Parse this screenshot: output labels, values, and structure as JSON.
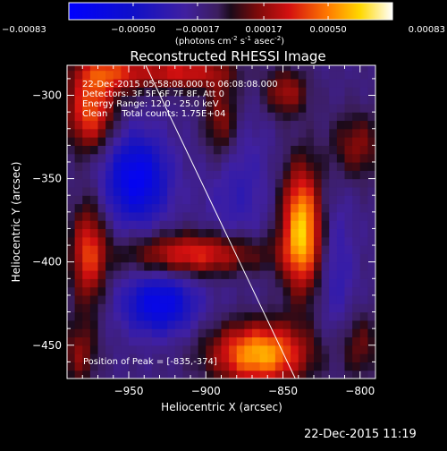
{
  "chart_data": {
    "type": "heatmap",
    "title": "Reconstructed RHESSI Image",
    "xlabel": "Heliocentric X (arcsec)",
    "ylabel": "Heliocentric Y (arcsec)",
    "xlim": [
      -990,
      -790
    ],
    "ylim": [
      -470,
      -282
    ],
    "x_ticks": [
      -950,
      -900,
      -850,
      -800
    ],
    "y_ticks": [
      -300,
      -350,
      -400,
      -450
    ],
    "colorbar": {
      "ticks": [
        "-0.00083",
        "-0.00050",
        "-0.00017",
        "0.00017",
        "0.00050",
        "0.00083"
      ],
      "range": [
        -0.00083,
        0.00083
      ],
      "unit_text": "(photons cm",
      "unit_sup1": "-2",
      "unit_mid": " s",
      "unit_sup2": "-1",
      "unit_mid2": " asec",
      "unit_sup3": "-2",
      "unit_end": ")"
    },
    "annotations": [
      "22-Dec-2015 05:58:08.000 to 06:08:08.000",
      "Detectors: 3F 5F 6F 7F 8F, Att 0",
      "Energy Range: 12.0 - 25.0 keV",
      "Clean     Total counts: 1.75E+04"
    ],
    "peak_text": "Position of Peak = [-835,-374]",
    "limb_line": {
      "x": [
        -939,
        -842
      ],
      "y": [
        -282,
        -470
      ]
    },
    "blobs": [
      {
        "x": -838,
        "y": -380,
        "sx": 9,
        "sy": 26,
        "a": 1.6
      },
      {
        "x": -865,
        "y": -455,
        "sx": 22,
        "sy": 13,
        "a": 1.5
      },
      {
        "x": -975,
        "y": -310,
        "sx": 11,
        "sy": 16,
        "a": 1.1
      },
      {
        "x": -963,
        "y": -285,
        "sx": 16,
        "sy": 10,
        "a": 0.9
      },
      {
        "x": -976,
        "y": -395,
        "sx": 8,
        "sy": 22,
        "a": 1.0
      },
      {
        "x": -905,
        "y": -395,
        "sx": 32,
        "sy": 9,
        "a": 1.0
      },
      {
        "x": -890,
        "y": -315,
        "sx": 8,
        "sy": 18,
        "a": 0.7
      },
      {
        "x": -915,
        "y": -285,
        "sx": 22,
        "sy": 8,
        "a": 0.9
      },
      {
        "x": -848,
        "y": -298,
        "sx": 10,
        "sy": 10,
        "a": 0.7
      },
      {
        "x": -802,
        "y": -330,
        "sx": 12,
        "sy": 14,
        "a": 0.6
      },
      {
        "x": -982,
        "y": -455,
        "sx": 8,
        "sy": 14,
        "a": 0.6
      },
      {
        "x": -800,
        "y": -450,
        "sx": 9,
        "sy": 14,
        "a": 0.5
      },
      {
        "x": -945,
        "y": -350,
        "sx": 14,
        "sy": 18,
        "a": -1.2
      },
      {
        "x": -930,
        "y": -425,
        "sx": 16,
        "sy": 12,
        "a": -1.1
      },
      {
        "x": -880,
        "y": -355,
        "sx": 14,
        "sy": 30,
        "a": -0.35
      },
      {
        "x": -815,
        "y": -405,
        "sx": 8,
        "sy": 30,
        "a": -0.35
      }
    ]
  },
  "footer": {
    "datetime": "22-Dec-2015 11:19"
  }
}
